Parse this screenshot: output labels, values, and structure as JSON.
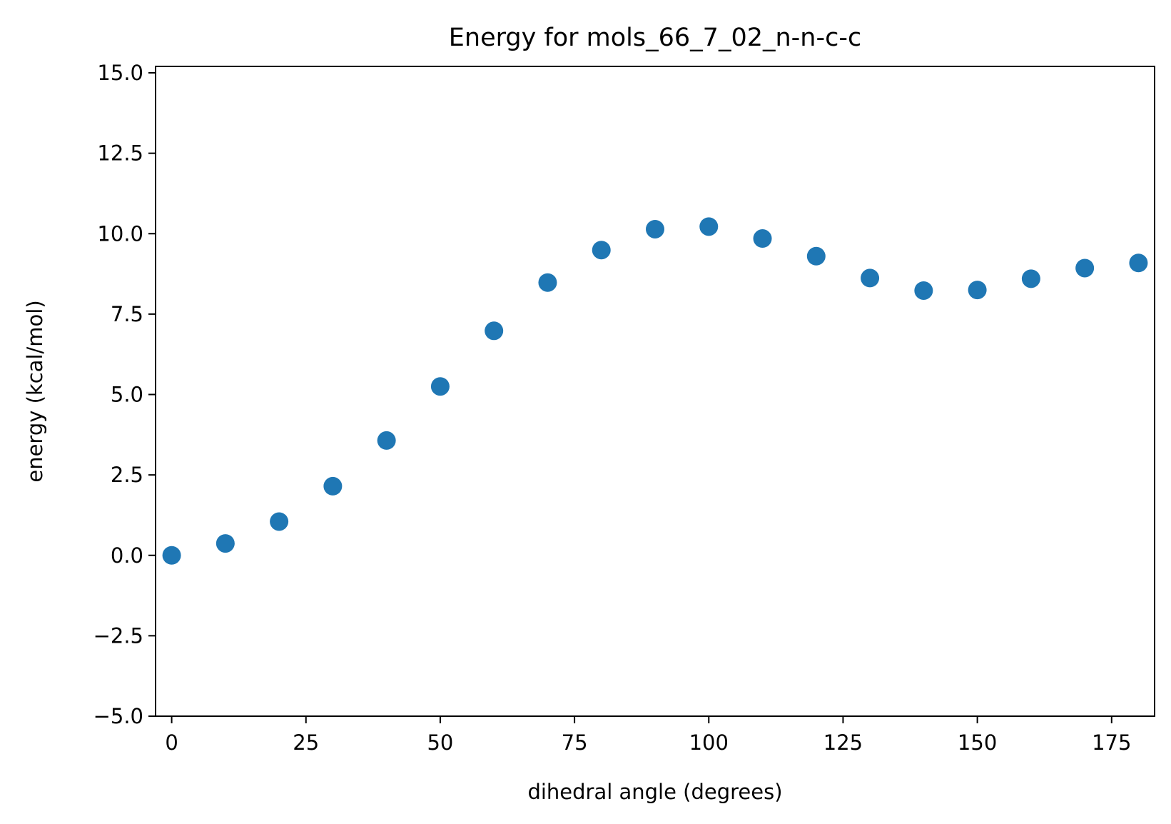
{
  "chart_data": {
    "type": "scatter",
    "title": "Energy for mols_66_7_02_n-n-c-c",
    "xlabel": "dihedral angle (degrees)",
    "ylabel": "energy (kcal/mol)",
    "xlim": [
      -3,
      183
    ],
    "ylim": [
      -5,
      15.2
    ],
    "xticks": [
      0,
      25,
      50,
      75,
      100,
      125,
      150,
      175
    ],
    "xtick_labels": [
      "0",
      "25",
      "50",
      "75",
      "100",
      "125",
      "150",
      "175"
    ],
    "yticks": [
      -5,
      -2.5,
      0,
      2.5,
      5,
      7.5,
      10,
      12.5,
      15
    ],
    "ytick_labels": [
      "−5.0",
      "−2.5",
      "0.0",
      "2.5",
      "5.0",
      "7.5",
      "10.0",
      "12.5",
      "15.0"
    ],
    "grid": false,
    "marker_color": "#1f77b4",
    "series": [
      {
        "x": [
          0,
          10,
          20,
          30,
          40,
          50,
          60,
          70,
          80,
          90,
          100,
          110,
          120,
          130,
          140,
          150,
          160,
          170,
          180
        ],
        "y": [
          0.0,
          0.37,
          1.05,
          2.15,
          3.57,
          5.25,
          6.98,
          8.48,
          9.49,
          10.14,
          10.22,
          9.85,
          9.3,
          8.62,
          8.23,
          8.25,
          8.6,
          8.93,
          9.09
        ]
      }
    ]
  }
}
